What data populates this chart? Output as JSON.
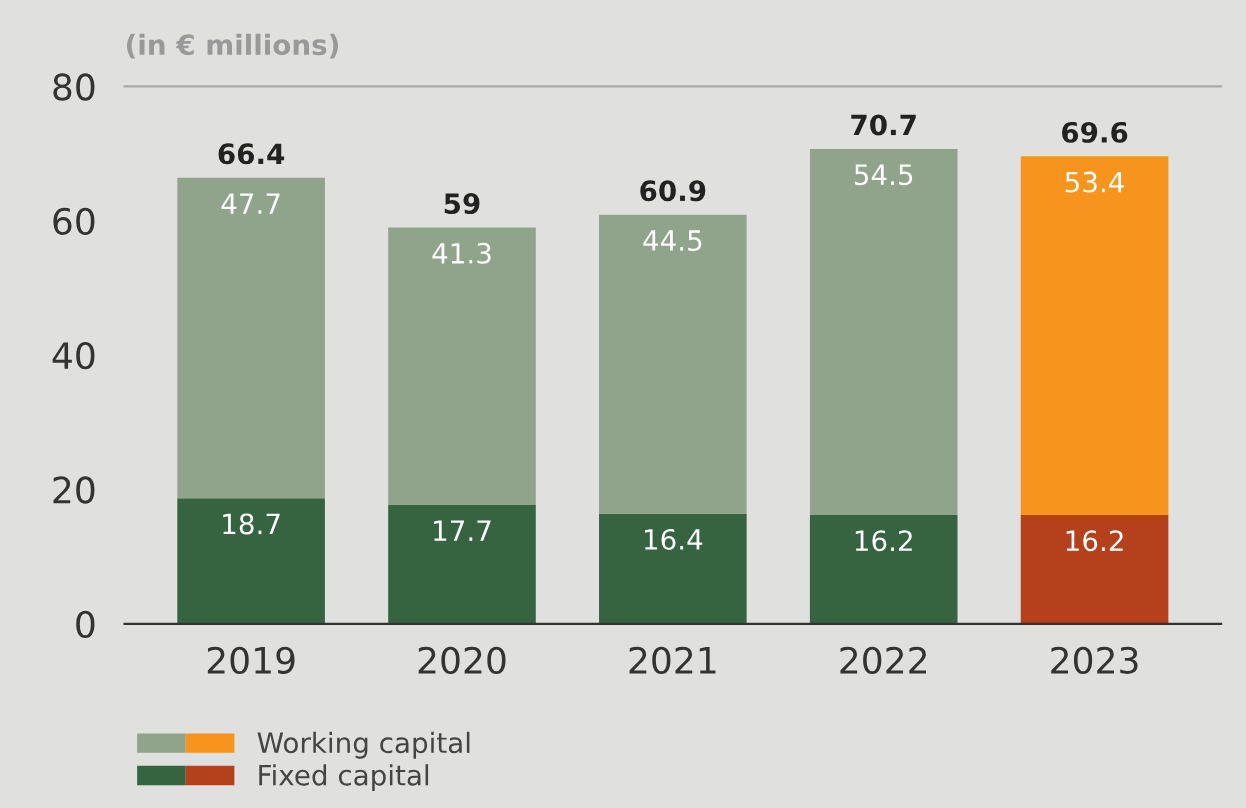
{
  "chart_data": {
    "type": "bar",
    "subtitle": "(in € millions)",
    "categories": [
      "2019",
      "2020",
      "2021",
      "2022",
      "2023"
    ],
    "stacked": true,
    "data_labels": true,
    "legend": "bottom left",
    "grid": false,
    "ylim": [
      0,
      80
    ],
    "yticks": [
      0,
      20,
      40,
      60,
      80
    ],
    "series": [
      {
        "name": "Fixed capital",
        "colors": [
          "#376440",
          "#376440",
          "#376440",
          "#376440",
          "#b5401c"
        ],
        "values": [
          18.7,
          17.7,
          16.4,
          16.2,
          16.2
        ]
      },
      {
        "name": "Working capital",
        "colors": [
          "#8fa48a",
          "#8fa48a",
          "#8fa48a",
          "#8fa48a",
          "#f7941d"
        ],
        "values": [
          47.7,
          41.3,
          44.5,
          54.5,
          53.4
        ]
      }
    ],
    "totals": [
      "66.4",
      "59",
      "60.9",
      "70.7",
      "69.6"
    ]
  }
}
